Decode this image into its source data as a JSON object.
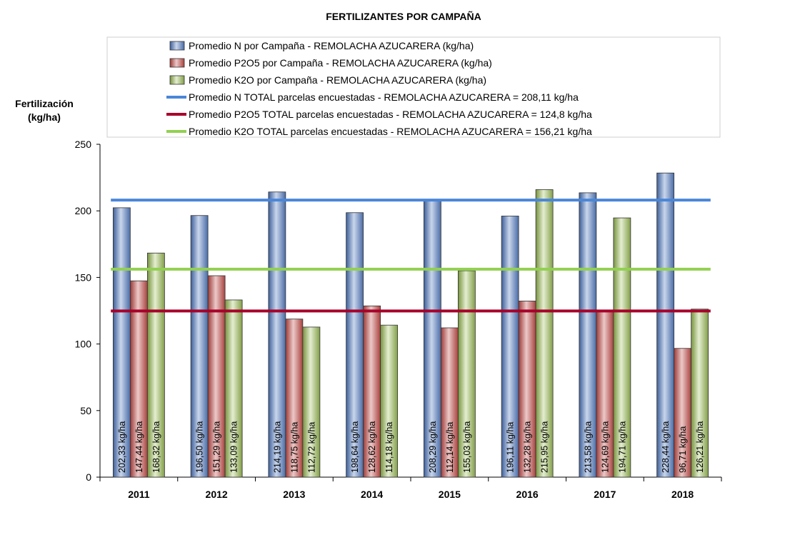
{
  "chart_data": {
    "type": "bar",
    "title": "FERTILIZANTES POR CAMPAÑA",
    "ylabel": [
      "Fertilización",
      "(kg/ha)"
    ],
    "xlabel": "",
    "ylim": [
      0,
      250
    ],
    "yticks": [
      0,
      50,
      100,
      150,
      200,
      250
    ],
    "categories": [
      "2011",
      "2012",
      "2013",
      "2014",
      "2015",
      "2016",
      "2017",
      "2018"
    ],
    "series": [
      {
        "name": "Promedio N por Campaña - REMOLACHA AZUCARERA (kg/ha)",
        "color": "#5b7fba",
        "values": [
          202.33,
          196.5,
          214.19,
          198.64,
          208.29,
          196.11,
          213.58,
          228.44
        ],
        "labels": [
          "202,33 kg/ha",
          "196,50 kg/ha",
          "214,19 kg/ha",
          "198,64 kg/ha",
          "208,29 kg/ha",
          "196,11 kg/ha",
          "213,58 kg/ha",
          "228,44 kg/ha"
        ]
      },
      {
        "name": "Promedio P2O5 por Campaña - REMOLACHA AZUCARERA (kg/ha)",
        "color": "#c0504d",
        "values": [
          147.44,
          151.29,
          118.75,
          128.62,
          112.14,
          132.28,
          124.69,
          96.71
        ],
        "labels": [
          "147,44 kg/ha",
          "151,29 kg/ha",
          "118,75 kg/ha",
          "128,62 kg/ha",
          "112,14 kg/ha",
          "132,28 kg/ha",
          "124,69 kg/ha",
          "96,71 kg/ha"
        ]
      },
      {
        "name": "Promedio K2O por Campaña - REMOLACHA AZUCARERA (kg/ha)",
        "color": "#9bbb59",
        "values": [
          168.32,
          133.09,
          112.72,
          114.18,
          155.03,
          215.95,
          194.71,
          126.21
        ],
        "labels": [
          "168,32 kg/ha",
          "133,09 kg/ha",
          "112,72 kg/ha",
          "114,18 kg/ha",
          "155,03 kg/ha",
          "215,95 kg/ha",
          "194,71 kg/ha",
          "126,21 kg/ha"
        ]
      }
    ],
    "reference_lines": [
      {
        "name": "Promedio N TOTAL parcelas encuestadas - REMOLACHA AZUCARERA = 208,11 kg/ha",
        "value": 208.11,
        "color": "#4a86d8"
      },
      {
        "name": "Promedio P2O5 TOTAL parcelas encuestadas - REMOLACHA AZUCARERA = 124,8 kg/ha",
        "value": 124.8,
        "color": "#a8002a"
      },
      {
        "name": "Promedio K2O TOTAL parcelas encuestadas - REMOLACHA AZUCARERA  = 156,21 kg/ha",
        "value": 156.21,
        "color": "#92d050"
      }
    ],
    "legend_position": "top"
  }
}
